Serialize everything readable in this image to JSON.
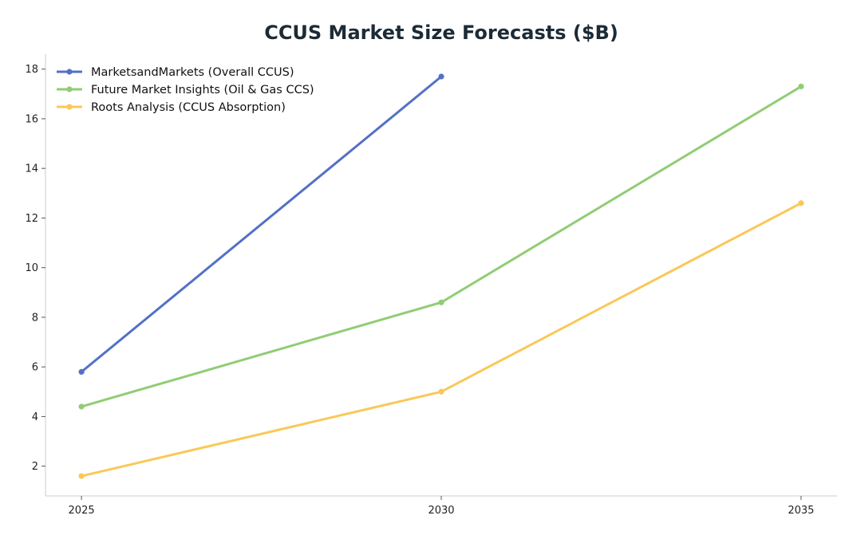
{
  "chart_data": {
    "type": "line",
    "title": "CCUS Market Size Forecasts ($B)",
    "xlabel": "",
    "ylabel": "",
    "x": [
      2025,
      2030,
      2035
    ],
    "xticks": [
      "2025",
      "2030",
      "2035"
    ],
    "xlim": [
      2024.5,
      2035.5
    ],
    "ylim": [
      0.8,
      18.6
    ],
    "yticks": [
      "2",
      "4",
      "6",
      "8",
      "10",
      "12",
      "14",
      "16",
      "18"
    ],
    "grid": false,
    "legend_position": "top-left",
    "series": [
      {
        "name": "MarketsandMarkets (Overall CCUS)",
        "color": "#5470c6",
        "values": [
          5.8,
          17.7,
          null
        ]
      },
      {
        "name": "Future Market Insights (Oil & Gas CCS)",
        "color": "#91cc75",
        "values": [
          4.4,
          8.6,
          17.3
        ]
      },
      {
        "name": "Roots Analysis (CCUS Absorption)",
        "color": "#fac858",
        "values": [
          1.6,
          5.0,
          12.6
        ]
      }
    ]
  }
}
